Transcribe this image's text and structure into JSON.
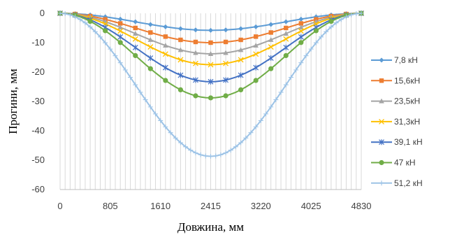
{
  "chart_data": {
    "type": "line",
    "title": "",
    "xlabel": "Довжина, мм",
    "ylabel": "Прогини, мм",
    "xlim": [
      0,
      4830
    ],
    "ylim": [
      -60,
      0
    ],
    "x_ticks": [
      "0",
      "805",
      "1610",
      "2415",
      "3220",
      "4025",
      "4830"
    ],
    "y_ticks": [
      "0",
      "-10",
      "-20",
      "-30",
      "-40",
      "-50",
      "-60"
    ],
    "grid": "vertical",
    "legend": "right",
    "series": [
      {
        "name": "7,8 кН",
        "peak": -5.8,
        "color": "#5B9BD5",
        "marker": "diamond",
        "marker_every": 3
      },
      {
        "name": "15,6кН",
        "peak": -10.0,
        "color": "#ED7D31",
        "marker": "square",
        "marker_every": 3
      },
      {
        "name": "23,5кН",
        "peak": -13.8,
        "color": "#A5A5A5",
        "marker": "triangle",
        "marker_every": 3
      },
      {
        "name": "31,3кН",
        "peak": -17.5,
        "color": "#FFC000",
        "marker": "x",
        "marker_every": 3
      },
      {
        "name": "39,1 кН",
        "peak": -23.3,
        "color": "#4472C4",
        "marker": "star",
        "marker_every": 3
      },
      {
        "name": "47 кН",
        "peak": -28.8,
        "color": "#70AD47",
        "marker": "circle",
        "marker_every": 3
      },
      {
        "name": "51,2 кН",
        "peak": -48.7,
        "color": "#9DC3E6",
        "marker": "plus",
        "marker_every": 1
      }
    ],
    "point_count": 61
  }
}
